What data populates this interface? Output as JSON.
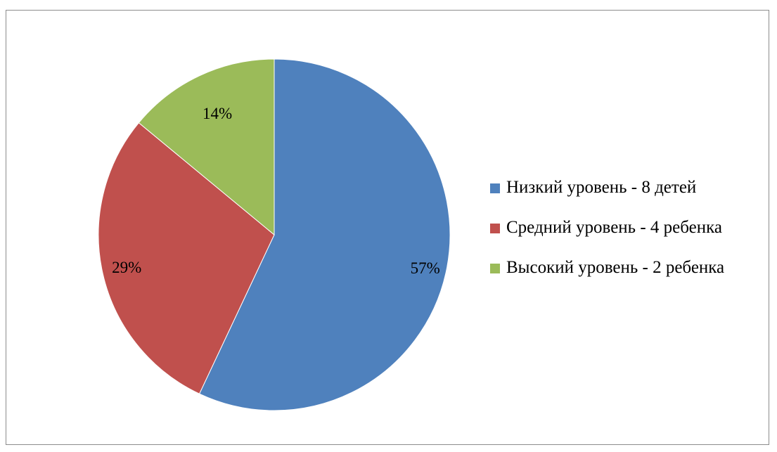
{
  "chart_data": {
    "type": "pie",
    "title": "",
    "legend_position": "right",
    "slices": [
      {
        "name": "Низкий уровень - 8 детей",
        "value": 57,
        "label": "57%",
        "color": "#4f81bd"
      },
      {
        "name": "Средний уровень - 4 ребенка",
        "value": 29,
        "label": "29%",
        "color": "#c0504d"
      },
      {
        "name": "Высокий уровень - 2 ребенка",
        "value": 14,
        "label": "14%",
        "color": "#9bbb59"
      }
    ]
  }
}
